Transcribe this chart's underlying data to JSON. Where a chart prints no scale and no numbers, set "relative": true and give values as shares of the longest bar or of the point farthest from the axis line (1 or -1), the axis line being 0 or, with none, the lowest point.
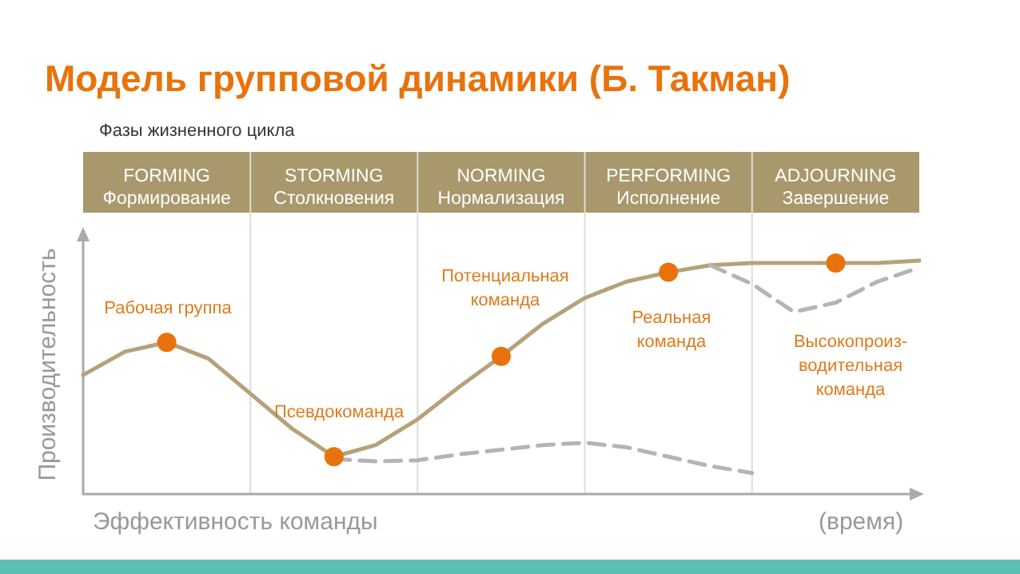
{
  "chart_data": {
    "type": "line",
    "title": "Модель групповой динамики (Б. Такман)",
    "subtitle": "Фазы жизненного цикла",
    "xlabel": "Эффективность команды",
    "ylabel": "Производительность",
    "relative": true,
    "grid": "x",
    "categories": [
      null,
      null,
      "FORMING\nФормирование",
      null,
      null,
      null,
      "STORMING\nСтолкновения",
      null,
      null,
      null,
      "NORMING\nНормализация",
      null,
      null,
      null,
      "PERFORMING\nИсполнение",
      null,
      null,
      null,
      "ADJOURNING\nЗавершение",
      null,
      null
    ],
    "series": [
      {
        "color": "#b5a27a",
        "line_style": "solid",
        "values": [
          0.51,
          0.61,
          0.65,
          0.58,
          0.43,
          0.28,
          0.16,
          0.21,
          0.32,
          0.46,
          0.59,
          0.73,
          0.84,
          0.91,
          0.95,
          0.98,
          0.99,
          0.99,
          0.99,
          0.99,
          1.0
        ]
      },
      {
        "color": "#b4b4b4",
        "line_style": "dashed",
        "values": [
          null,
          null,
          null,
          null,
          null,
          null,
          0.15,
          0.14,
          0.145,
          0.17,
          0.19,
          0.21,
          0.22,
          0.2,
          0.16,
          0.12,
          0.09,
          null,
          null,
          null,
          null
        ]
      },
      {
        "color": "#b4b4b4",
        "line_style": "dashed",
        "values": [
          null,
          null,
          null,
          null,
          null,
          null,
          null,
          null,
          null,
          null,
          null,
          null,
          null,
          null,
          null,
          0.98,
          0.9,
          0.78,
          0.82,
          0.91,
          0.97
        ]
      },
      {
        "type": "scatter",
        "color": "#e8730c",
        "marker": "circle",
        "x": [
          "FORMING\nФормирование",
          "STORMING\nСтолкновения",
          "NORMING\nНормализация",
          "PERFORMING\nИсполнение",
          "ADJOURNING\nЗавершение"
        ],
        "values": [
          0.65,
          0.16,
          0.59,
          0.95,
          0.99
        ]
      }
    ],
    "annotations": [
      "Рабочая группа",
      "Псевдокоманда",
      "Потенциальная\nкоманда",
      "Реальная\nкоманда",
      "Высокопроиз-\nводительная\nкоманда",
      "(время)"
    ]
  }
}
